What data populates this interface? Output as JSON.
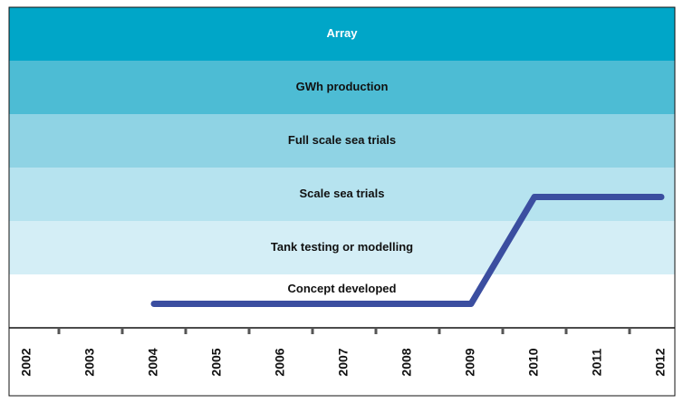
{
  "chart_data": {
    "type": "line",
    "y_categories": [
      "Concept developed",
      "Tank testing or modelling",
      "Scale sea trials",
      "Full scale sea trials",
      "GWh production",
      "Array"
    ],
    "band_colors": [
      "#ffffff",
      "#d4eef6",
      "#b6e3ef",
      "#8fd3e4",
      "#4dbcd4",
      "#00a6c8"
    ],
    "categories": [
      "2002",
      "2003",
      "2004",
      "2005",
      "2006",
      "2007",
      "2008",
      "2009",
      "2010",
      "2011",
      "2012"
    ],
    "series": [
      {
        "color": "#3b4ea0",
        "values": [
          null,
          null,
          0,
          0,
          0,
          0,
          0,
          0,
          2,
          2,
          2
        ]
      }
    ]
  }
}
